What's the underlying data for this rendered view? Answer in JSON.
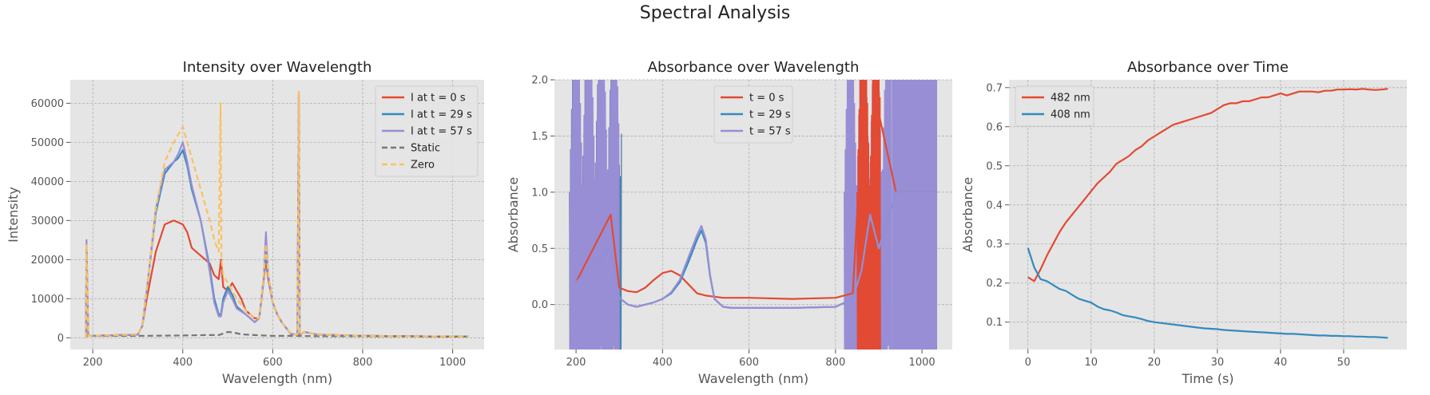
{
  "figure": {
    "title": "Spectral Analysis"
  },
  "colors": {
    "red": "#E24A33",
    "blue": "#348ABD",
    "purple": "#988ED5",
    "gray": "#777777",
    "yellow": "#FBC15E",
    "panel_bg": "#E5E5E5",
    "grid": "#B0B0B0"
  },
  "chart_data": [
    {
      "type": "line",
      "title": "Intensity over Wavelength",
      "xlabel": "Wavelength (nm)",
      "ylabel": "Intensity",
      "xlim": [
        150,
        1070
      ],
      "ylim": [
        -3000,
        66000
      ],
      "xticks": [
        200,
        400,
        600,
        800,
        1000
      ],
      "yticks": [
        0,
        10000,
        20000,
        30000,
        40000,
        50000,
        60000
      ],
      "legend": "top-right",
      "grid": true,
      "series": [
        {
          "name": "I at t = 0 s",
          "color": "#E24A33",
          "dash": false,
          "x": [
            185,
            186,
            190,
            300,
            310,
            320,
            340,
            360,
            380,
            400,
            410,
            420,
            440,
            460,
            470,
            480,
            485,
            490,
            500,
            510,
            520,
            530,
            540,
            560,
            570,
            580,
            585,
            590,
            600,
            610,
            620,
            640,
            655,
            658,
            660,
            662,
            670,
            700,
            800,
            1000,
            1035
          ],
          "y": [
            0,
            20000,
            500,
            800,
            3000,
            10000,
            22000,
            29000,
            30000,
            29000,
            27000,
            23000,
            21000,
            19000,
            16000,
            15000,
            20000,
            13000,
            12000,
            14000,
            12000,
            10000,
            7000,
            5000,
            5000,
            15000,
            20000,
            15000,
            9000,
            6000,
            4000,
            1000,
            800,
            800,
            800,
            700,
            1500,
            800,
            500,
            300,
            300
          ]
        },
        {
          "name": "I at t = 29 s",
          "color": "#348ABD",
          "dash": false,
          "x": [
            185,
            186,
            190,
            300,
            310,
            320,
            340,
            360,
            380,
            390,
            400,
            410,
            420,
            440,
            460,
            470,
            480,
            485,
            490,
            500,
            510,
            520,
            540,
            560,
            570,
            580,
            585,
            590,
            600,
            610,
            620,
            640,
            655,
            658,
            660,
            662,
            670,
            700,
            800,
            1000,
            1035
          ],
          "y": [
            0,
            24000,
            500,
            800,
            3000,
            12000,
            32000,
            42000,
            45000,
            46000,
            48000,
            44000,
            38000,
            30000,
            18000,
            10000,
            6000,
            6000,
            10000,
            13000,
            11000,
            8000,
            6000,
            4000,
            5000,
            15000,
            22000,
            16000,
            9000,
            6000,
            4000,
            1000,
            800,
            62000,
            800,
            700,
            1500,
            800,
            500,
            300,
            300
          ]
        },
        {
          "name": "I at t = 57 s",
          "color": "#988ED5",
          "dash": false,
          "x": [
            185,
            186,
            190,
            300,
            310,
            320,
            340,
            360,
            380,
            390,
            400,
            410,
            420,
            440,
            460,
            470,
            480,
            485,
            490,
            500,
            510,
            520,
            540,
            560,
            570,
            580,
            585,
            590,
            600,
            610,
            620,
            640,
            655,
            658,
            660,
            662,
            670,
            700,
            800,
            1000,
            1035
          ],
          "y": [
            0,
            25000,
            500,
            800,
            3000,
            12000,
            33000,
            43000,
            45000,
            47000,
            50000,
            45000,
            39000,
            30000,
            17000,
            9000,
            5500,
            5500,
            9000,
            12000,
            10000,
            7500,
            6000,
            4000,
            5000,
            15000,
            27000,
            16000,
            9000,
            6000,
            4000,
            1000,
            800,
            63000,
            800,
            700,
            1500,
            800,
            500,
            300,
            300
          ]
        },
        {
          "name": "Static",
          "color": "#777777",
          "dash": true,
          "x": [
            185,
            300,
            400,
            450,
            480,
            500,
            510,
            530,
            560,
            600,
            650,
            700,
            800,
            1000,
            1035
          ],
          "y": [
            500,
            500,
            600,
            700,
            700,
            1500,
            1400,
            900,
            700,
            500,
            500,
            400,
            400,
            300,
            300
          ]
        },
        {
          "name": "Zero",
          "color": "#FBC15E",
          "dash": true,
          "x": [
            185,
            186,
            190,
            300,
            310,
            320,
            340,
            360,
            380,
            390,
            400,
            410,
            420,
            440,
            460,
            470,
            480,
            484,
            486,
            488,
            490,
            500,
            510,
            520,
            540,
            560,
            570,
            580,
            585,
            590,
            600,
            610,
            620,
            640,
            655,
            658,
            660,
            662,
            670,
            700,
            800,
            1000,
            1035
          ],
          "y": [
            0,
            24000,
            500,
            800,
            3000,
            12000,
            33000,
            45000,
            50000,
            52000,
            54000,
            50000,
            46000,
            38000,
            30000,
            25000,
            22000,
            60000,
            20000,
            18000,
            16000,
            14000,
            12000,
            10000,
            7000,
            5000,
            5000,
            16000,
            24000,
            16000,
            9000,
            6000,
            4000,
            1000,
            800,
            63000,
            800,
            700,
            1500,
            800,
            500,
            300,
            300
          ]
        }
      ]
    },
    {
      "type": "line",
      "title": "Absorbance over Wavelength",
      "xlabel": "Wavelength (nm)",
      "ylabel": "Absorbance",
      "xlim": [
        150,
        1070
      ],
      "ylim": [
        -0.4,
        2.0
      ],
      "xticks": [
        200,
        400,
        600,
        800,
        1000
      ],
      "yticks": [
        0.0,
        0.5,
        1.0,
        1.5,
        2.0
      ],
      "legend": "top-center",
      "grid": true,
      "series": [
        {
          "name": "t = 0 s",
          "color": "#E24A33",
          "x": [
            200,
            280,
            300,
            320,
            340,
            360,
            380,
            400,
            420,
            440,
            460,
            480,
            500,
            520,
            540,
            560,
            600,
            700,
            800,
            840,
            860,
            880,
            900,
            940,
            1000,
            1035
          ],
          "y": [
            0.2,
            0.8,
            0.15,
            0.12,
            0.11,
            0.15,
            0.22,
            0.28,
            0.3,
            0.26,
            0.18,
            0.1,
            0.08,
            0.07,
            0.06,
            0.06,
            0.06,
            0.05,
            0.06,
            0.1,
            1.5,
            0.8,
            1.7,
            1.0,
            1.0,
            1.0
          ]
        },
        {
          "name": "t = 29 s",
          "color": "#348ABD",
          "x": [
            200,
            280,
            300,
            320,
            340,
            360,
            380,
            400,
            420,
            440,
            460,
            480,
            490,
            500,
            510,
            520,
            540,
            560,
            600,
            700,
            800,
            840,
            860,
            880,
            900,
            940,
            1000,
            1035
          ],
          "y": [
            0.2,
            0.5,
            0.06,
            0.0,
            -0.02,
            0.0,
            0.02,
            0.05,
            0.1,
            0.2,
            0.38,
            0.58,
            0.66,
            0.55,
            0.25,
            0.05,
            -0.02,
            -0.03,
            -0.03,
            -0.03,
            -0.02,
            0.05,
            0.3,
            0.8,
            0.5,
            1.0,
            1.0,
            1.0
          ]
        },
        {
          "name": "t = 57 s",
          "color": "#988ED5",
          "x": [
            200,
            280,
            300,
            320,
            340,
            360,
            380,
            400,
            420,
            440,
            460,
            480,
            490,
            500,
            510,
            520,
            540,
            560,
            600,
            700,
            800,
            840,
            860,
            880,
            900,
            940,
            1000,
            1035
          ],
          "y": [
            0.2,
            0.5,
            0.06,
            0.0,
            -0.02,
            0.0,
            0.02,
            0.05,
            0.11,
            0.22,
            0.42,
            0.62,
            0.7,
            0.58,
            0.26,
            0.05,
            -0.02,
            -0.03,
            -0.03,
            -0.03,
            -0.02,
            0.05,
            0.3,
            0.8,
            0.5,
            1.0,
            1.0,
            1.0
          ]
        }
      ]
    },
    {
      "type": "line",
      "title": "Absorbance over Time",
      "xlabel": "Time (s)",
      "ylabel": "Absorbance",
      "xlim": [
        -3,
        60
      ],
      "ylim": [
        0.03,
        0.72
      ],
      "xticks": [
        0,
        10,
        20,
        30,
        40,
        50
      ],
      "yticks": [
        0.1,
        0.2,
        0.3,
        0.4,
        0.5,
        0.6,
        0.7
      ],
      "legend": "top-left",
      "grid": true,
      "series": [
        {
          "name": "482 nm",
          "color": "#E24A33",
          "x": [
            0,
            1,
            2,
            3,
            4,
            5,
            6,
            7,
            8,
            9,
            10,
            11,
            12,
            13,
            14,
            15,
            16,
            17,
            18,
            19,
            20,
            21,
            22,
            23,
            24,
            25,
            26,
            27,
            28,
            29,
            30,
            31,
            32,
            33,
            34,
            35,
            36,
            37,
            38,
            39,
            40,
            41,
            42,
            43,
            44,
            45,
            46,
            47,
            48,
            49,
            50,
            51,
            52,
            53,
            54,
            55,
            56,
            57
          ],
          "y": [
            0.215,
            0.205,
            0.235,
            0.27,
            0.3,
            0.33,
            0.355,
            0.375,
            0.395,
            0.415,
            0.435,
            0.455,
            0.47,
            0.485,
            0.505,
            0.515,
            0.525,
            0.54,
            0.55,
            0.565,
            0.575,
            0.585,
            0.595,
            0.605,
            0.61,
            0.615,
            0.62,
            0.625,
            0.63,
            0.635,
            0.645,
            0.655,
            0.66,
            0.66,
            0.665,
            0.665,
            0.67,
            0.675,
            0.675,
            0.68,
            0.685,
            0.68,
            0.685,
            0.69,
            0.69,
            0.69,
            0.688,
            0.692,
            0.692,
            0.695,
            0.695,
            0.696,
            0.695,
            0.697,
            0.695,
            0.694,
            0.695,
            0.697
          ]
        },
        {
          "name": "408 nm",
          "color": "#348ABD",
          "x": [
            0,
            1,
            2,
            3,
            4,
            5,
            6,
            7,
            8,
            9,
            10,
            11,
            12,
            13,
            14,
            15,
            16,
            17,
            18,
            19,
            20,
            21,
            22,
            23,
            24,
            25,
            26,
            27,
            28,
            29,
            30,
            31,
            32,
            33,
            34,
            35,
            36,
            37,
            38,
            39,
            40,
            41,
            42,
            43,
            44,
            45,
            46,
            47,
            48,
            49,
            50,
            51,
            52,
            53,
            54,
            55,
            56,
            57
          ],
          "y": [
            0.29,
            0.24,
            0.21,
            0.205,
            0.195,
            0.185,
            0.18,
            0.17,
            0.16,
            0.155,
            0.15,
            0.14,
            0.133,
            0.13,
            0.125,
            0.118,
            0.115,
            0.112,
            0.108,
            0.103,
            0.1,
            0.098,
            0.096,
            0.094,
            0.092,
            0.09,
            0.088,
            0.086,
            0.084,
            0.083,
            0.082,
            0.08,
            0.079,
            0.078,
            0.077,
            0.076,
            0.075,
            0.074,
            0.073,
            0.072,
            0.071,
            0.07,
            0.07,
            0.069,
            0.068,
            0.067,
            0.066,
            0.066,
            0.065,
            0.065,
            0.064,
            0.064,
            0.063,
            0.063,
            0.062,
            0.062,
            0.061,
            0.06
          ]
        }
      ]
    }
  ]
}
